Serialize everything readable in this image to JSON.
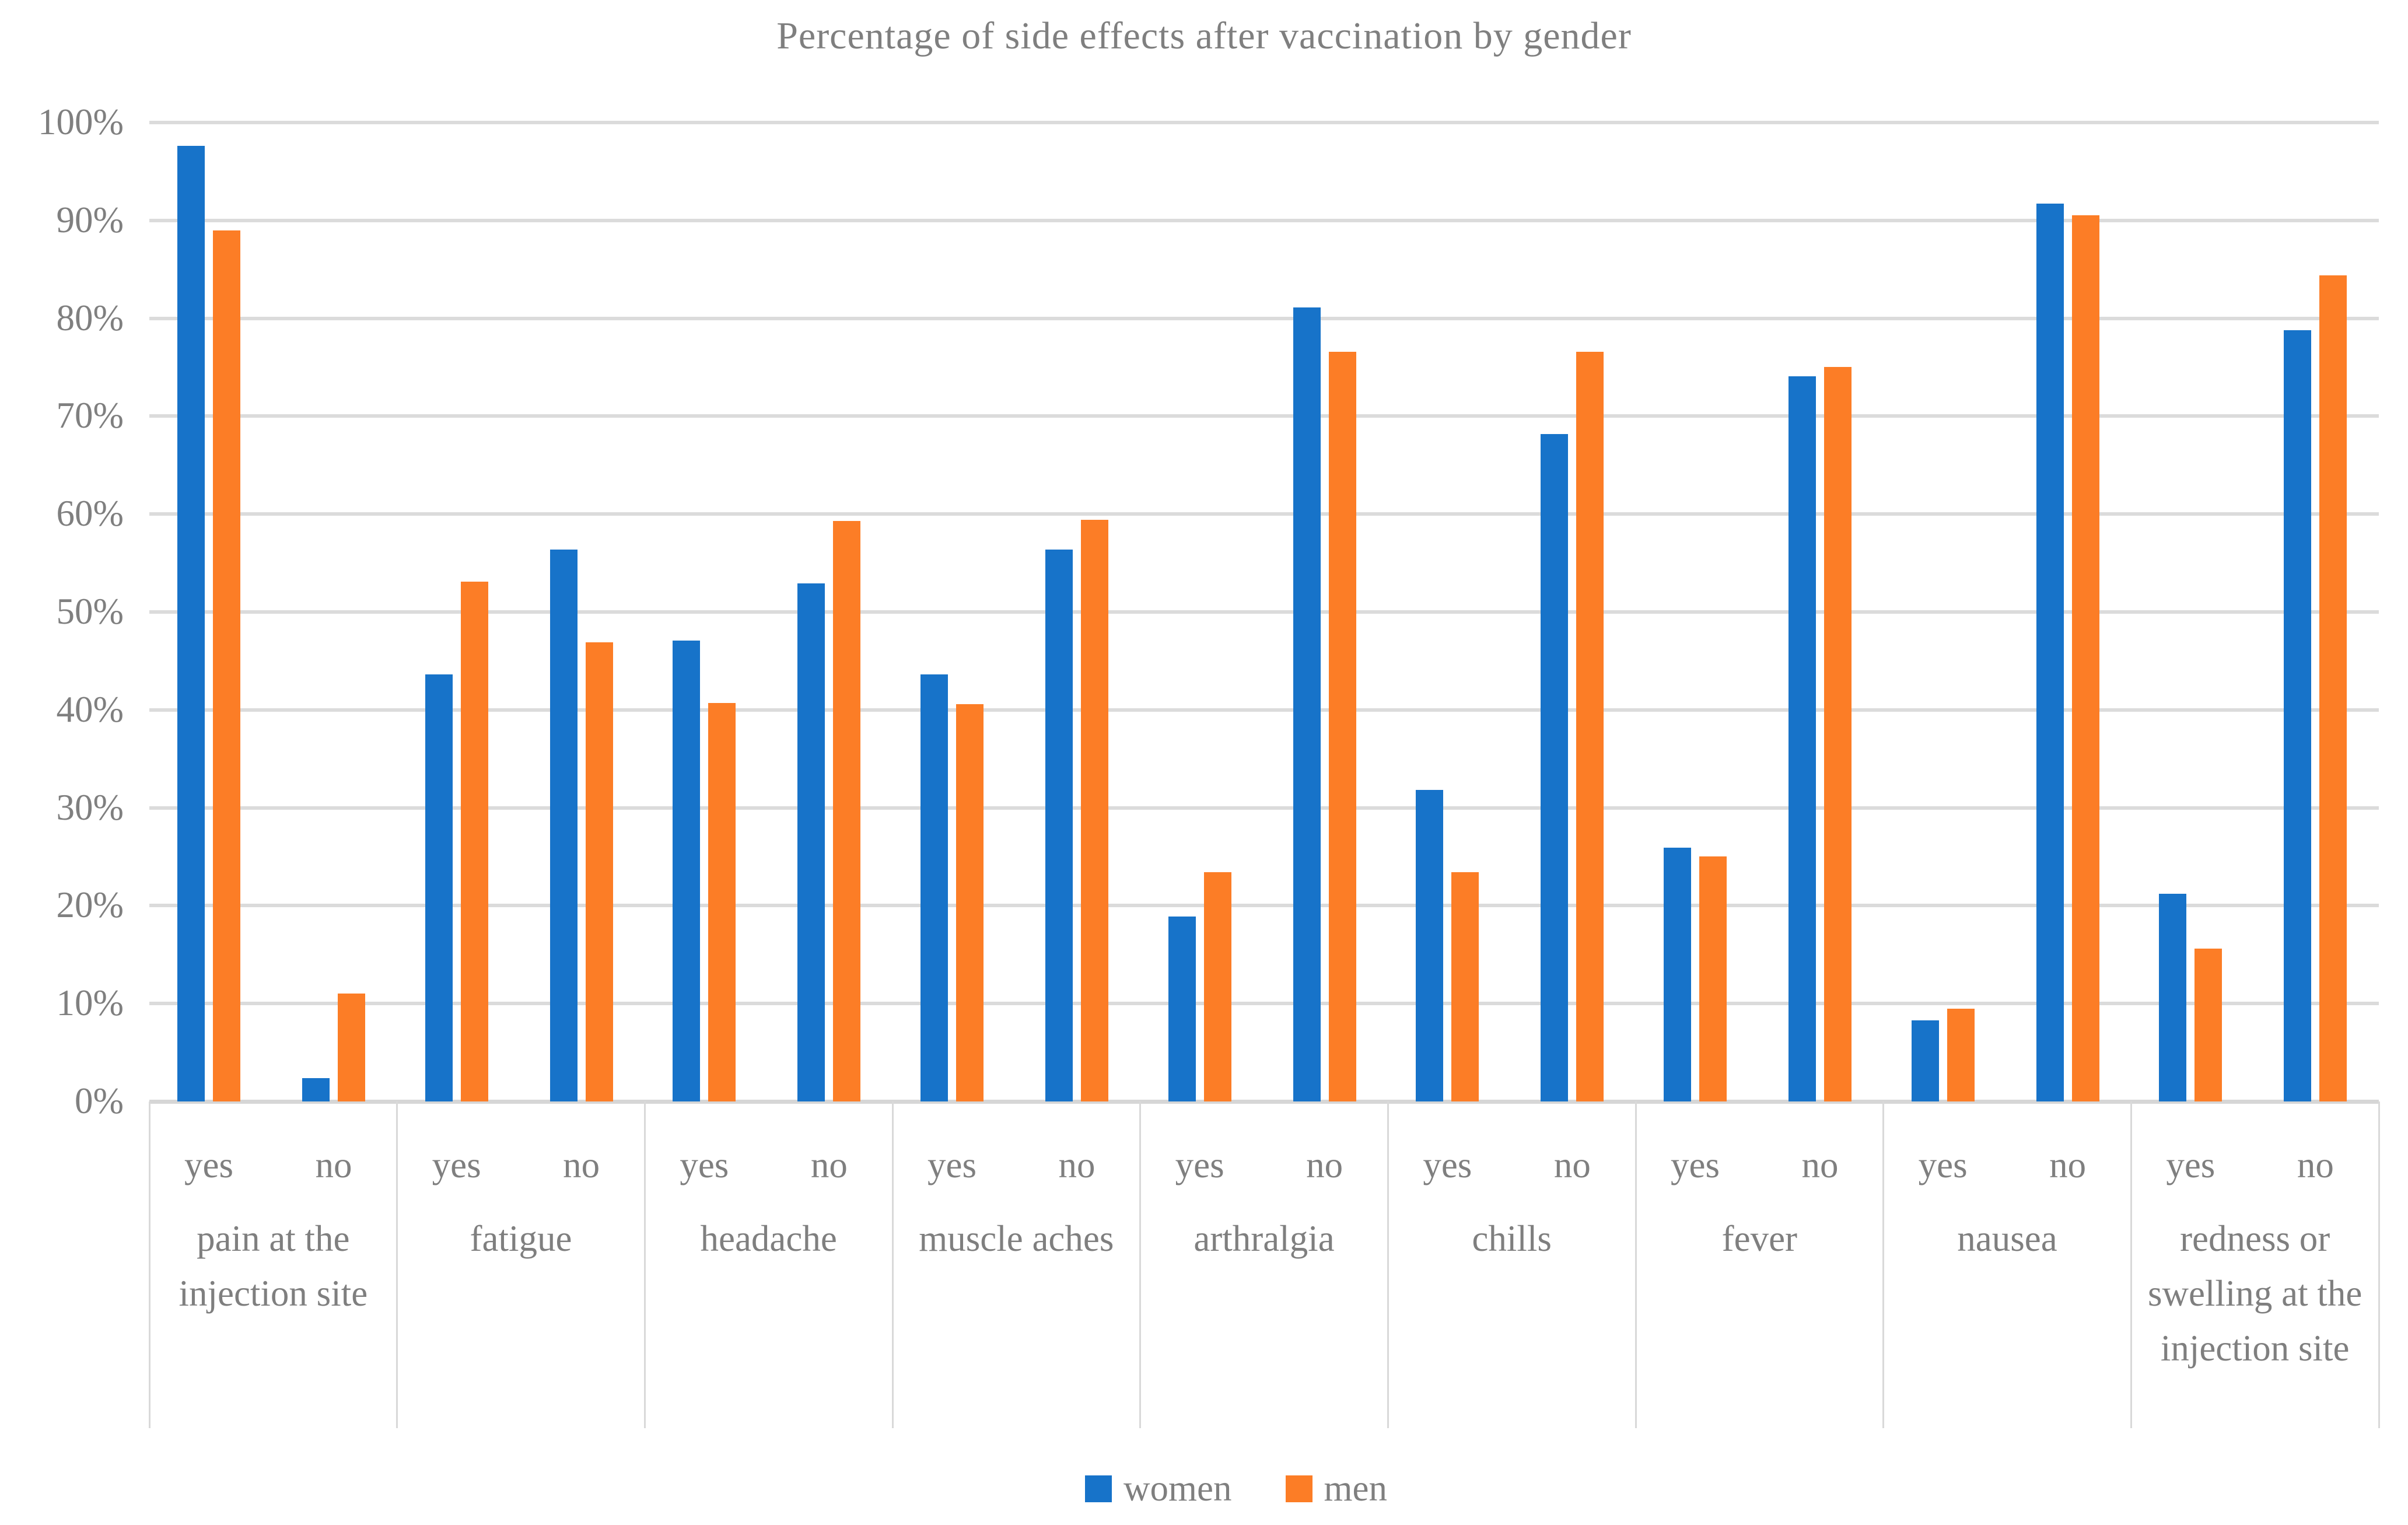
{
  "title": "Percentage of side effects after vaccination by gender",
  "colors": {
    "women": "#1773C9",
    "men": "#FC7D26",
    "gridline": "#DBDBDB",
    "text": "#7F7F7F"
  },
  "legend": {
    "entries": [
      "women",
      "men"
    ]
  },
  "chart_data": {
    "type": "bar",
    "title": "Percentage of side effects after vaccination by gender",
    "xlabel": "",
    "ylabel": "",
    "ylim": [
      0,
      100
    ],
    "grid": true,
    "legend_position": "bottom",
    "ytick_labels": [
      "0%",
      "10%",
      "20%",
      "30%",
      "40%",
      "50%",
      "60%",
      "70%",
      "80%",
      "90%",
      "100%"
    ],
    "subcategories": [
      "yes",
      "no"
    ],
    "series": [
      {
        "name": "women",
        "color": "#1773C9"
      },
      {
        "name": "men",
        "color": "#FC7D26"
      }
    ],
    "categories": [
      "pain at the injection site",
      "fatigue",
      "headache",
      "muscle aches",
      "arthralgia",
      "chills",
      "fever",
      "nausea",
      "redness or swelling at the injection site"
    ],
    "values": [
      {
        "category": "pain at the injection site",
        "yes": {
          "women": 97.6,
          "men": 89.0
        },
        "no": {
          "women": 2.4,
          "men": 11.0
        }
      },
      {
        "category": "fatigue",
        "yes": {
          "women": 43.6,
          "men": 53.1
        },
        "no": {
          "women": 56.4,
          "men": 46.9
        }
      },
      {
        "category": "headache",
        "yes": {
          "women": 47.1,
          "men": 40.7
        },
        "no": {
          "women": 52.9,
          "men": 59.3
        }
      },
      {
        "category": "muscle aches",
        "yes": {
          "women": 43.6,
          "men": 40.6
        },
        "no": {
          "women": 56.4,
          "men": 59.4
        }
      },
      {
        "category": "arthralgia",
        "yes": {
          "women": 18.9,
          "men": 23.4
        },
        "no": {
          "women": 81.1,
          "men": 76.6
        }
      },
      {
        "category": "chills",
        "yes": {
          "women": 31.8,
          "men": 23.4
        },
        "no": {
          "women": 68.2,
          "men": 76.6
        }
      },
      {
        "category": "fever",
        "yes": {
          "women": 25.9,
          "men": 25.0
        },
        "no": {
          "women": 74.1,
          "men": 75.0
        }
      },
      {
        "category": "nausea",
        "yes": {
          "women": 8.3,
          "men": 9.5
        },
        "no": {
          "women": 91.7,
          "men": 90.5
        }
      },
      {
        "category": "redness or swelling at the injection site",
        "yes": {
          "women": 21.2,
          "men": 15.6
        },
        "no": {
          "women": 78.8,
          "men": 84.4
        }
      }
    ]
  }
}
